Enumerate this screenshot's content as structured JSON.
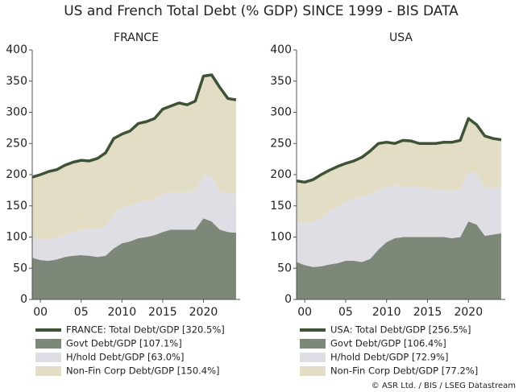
{
  "title": "US and French Total Debt (% GDP) SINCE 1999 - BIS DATA",
  "source": "© ASR Ltd. / BIS / LSEG Datastream",
  "chart_data": [
    {
      "type": "area",
      "title": "FRANCE",
      "x": [
        1999,
        2000,
        2001,
        2002,
        2003,
        2004,
        2005,
        2006,
        2007,
        2008,
        2009,
        2010,
        2011,
        2012,
        2013,
        2014,
        2015,
        2016,
        2017,
        2018,
        2019,
        2020,
        2021,
        2022,
        2023,
        2024
      ],
      "xlim": [
        1999,
        2024.5
      ],
      "xticks": [
        {
          "value": 2000,
          "label": "00"
        },
        {
          "value": 2005,
          "label": "05"
        },
        2010,
        2015,
        2020
      ],
      "ylim": [
        0,
        400
      ],
      "yticks": [
        0,
        50,
        100,
        150,
        200,
        250,
        300,
        350,
        400
      ],
      "series": [
        {
          "name": "FRANCE: Total Debt/GDP [320.5%]",
          "style": "line",
          "color": "#3e5236",
          "values": [
            196,
            200,
            205,
            208,
            215,
            220,
            223,
            222,
            226,
            235,
            258,
            265,
            270,
            282,
            285,
            290,
            305,
            310,
            315,
            312,
            318,
            358,
            360,
            340,
            322,
            320
          ]
        },
        {
          "name": "Govt Debt/GDP [107.1%]",
          "style": "area",
          "color": "#7d8878",
          "values": [
            67,
            63,
            62,
            64,
            68,
            70,
            71,
            70,
            68,
            70,
            82,
            90,
            93,
            98,
            100,
            103,
            108,
            112,
            112,
            112,
            112,
            130,
            125,
            112,
            108,
            107
          ]
        },
        {
          "name": "H/hold Debt/GDP [63.0%]",
          "style": "area",
          "color": "#dedee4",
          "values": [
            33,
            34,
            35,
            35,
            36,
            38,
            40,
            43,
            45,
            48,
            55,
            57,
            58,
            58,
            58,
            58,
            60,
            60,
            60,
            60,
            62,
            70,
            72,
            62,
            62,
            63
          ]
        },
        {
          "name": "Non-Fin Corp Debt/GDP [150.4%]",
          "style": "area",
          "color": "#e4ddc6",
          "values": [
            96,
            103,
            108,
            109,
            111,
            112,
            112,
            109,
            113,
            117,
            121,
            118,
            119,
            126,
            127,
            129,
            137,
            138,
            143,
            140,
            144,
            158,
            163,
            166,
            152,
            150
          ]
        }
      ]
    },
    {
      "type": "area",
      "title": "USA",
      "x": [
        1999,
        2000,
        2001,
        2002,
        2003,
        2004,
        2005,
        2006,
        2007,
        2008,
        2009,
        2010,
        2011,
        2012,
        2013,
        2014,
        2015,
        2016,
        2017,
        2018,
        2019,
        2020,
        2021,
        2022,
        2023,
        2024
      ],
      "xlim": [
        1999,
        2024.5
      ],
      "xticks": [
        {
          "value": 2000,
          "label": "00"
        },
        {
          "value": 2005,
          "label": "05"
        },
        2010,
        2015,
        2020
      ],
      "ylim": [
        0,
        400
      ],
      "yticks": [
        0,
        50,
        100,
        150,
        200,
        250,
        300,
        350,
        400
      ],
      "series": [
        {
          "name": "USA: Total Debt/GDP [256.5%]",
          "style": "line",
          "color": "#3e5236",
          "values": [
            190,
            188,
            192,
            200,
            207,
            213,
            218,
            222,
            228,
            238,
            250,
            252,
            250,
            255,
            254,
            250,
            250,
            250,
            252,
            252,
            255,
            290,
            280,
            262,
            258,
            256
          ]
        },
        {
          "name": "Govt Debt/GDP [106.4%]",
          "style": "area",
          "color": "#7d8878",
          "values": [
            60,
            55,
            52,
            53,
            56,
            58,
            62,
            62,
            60,
            65,
            80,
            92,
            98,
            100,
            100,
            100,
            100,
            100,
            100,
            98,
            100,
            125,
            120,
            102,
            104,
            106
          ]
        },
        {
          "name": "H/hold Debt/GDP [72.9%]",
          "style": "area",
          "color": "#dedee4",
          "values": [
            65,
            67,
            72,
            78,
            85,
            90,
            95,
            100,
            105,
            103,
            95,
            88,
            85,
            82,
            82,
            80,
            78,
            76,
            76,
            76,
            76,
            80,
            82,
            76,
            74,
            73
          ]
        },
        {
          "name": "Non-Fin Corp Debt/GDP [77.2%]",
          "style": "area",
          "color": "#e4ddc6",
          "values": [
            65,
            66,
            68,
            69,
            66,
            65,
            61,
            60,
            63,
            70,
            75,
            72,
            67,
            73,
            72,
            70,
            72,
            74,
            76,
            78,
            79,
            85,
            78,
            84,
            80,
            77
          ]
        }
      ]
    }
  ]
}
